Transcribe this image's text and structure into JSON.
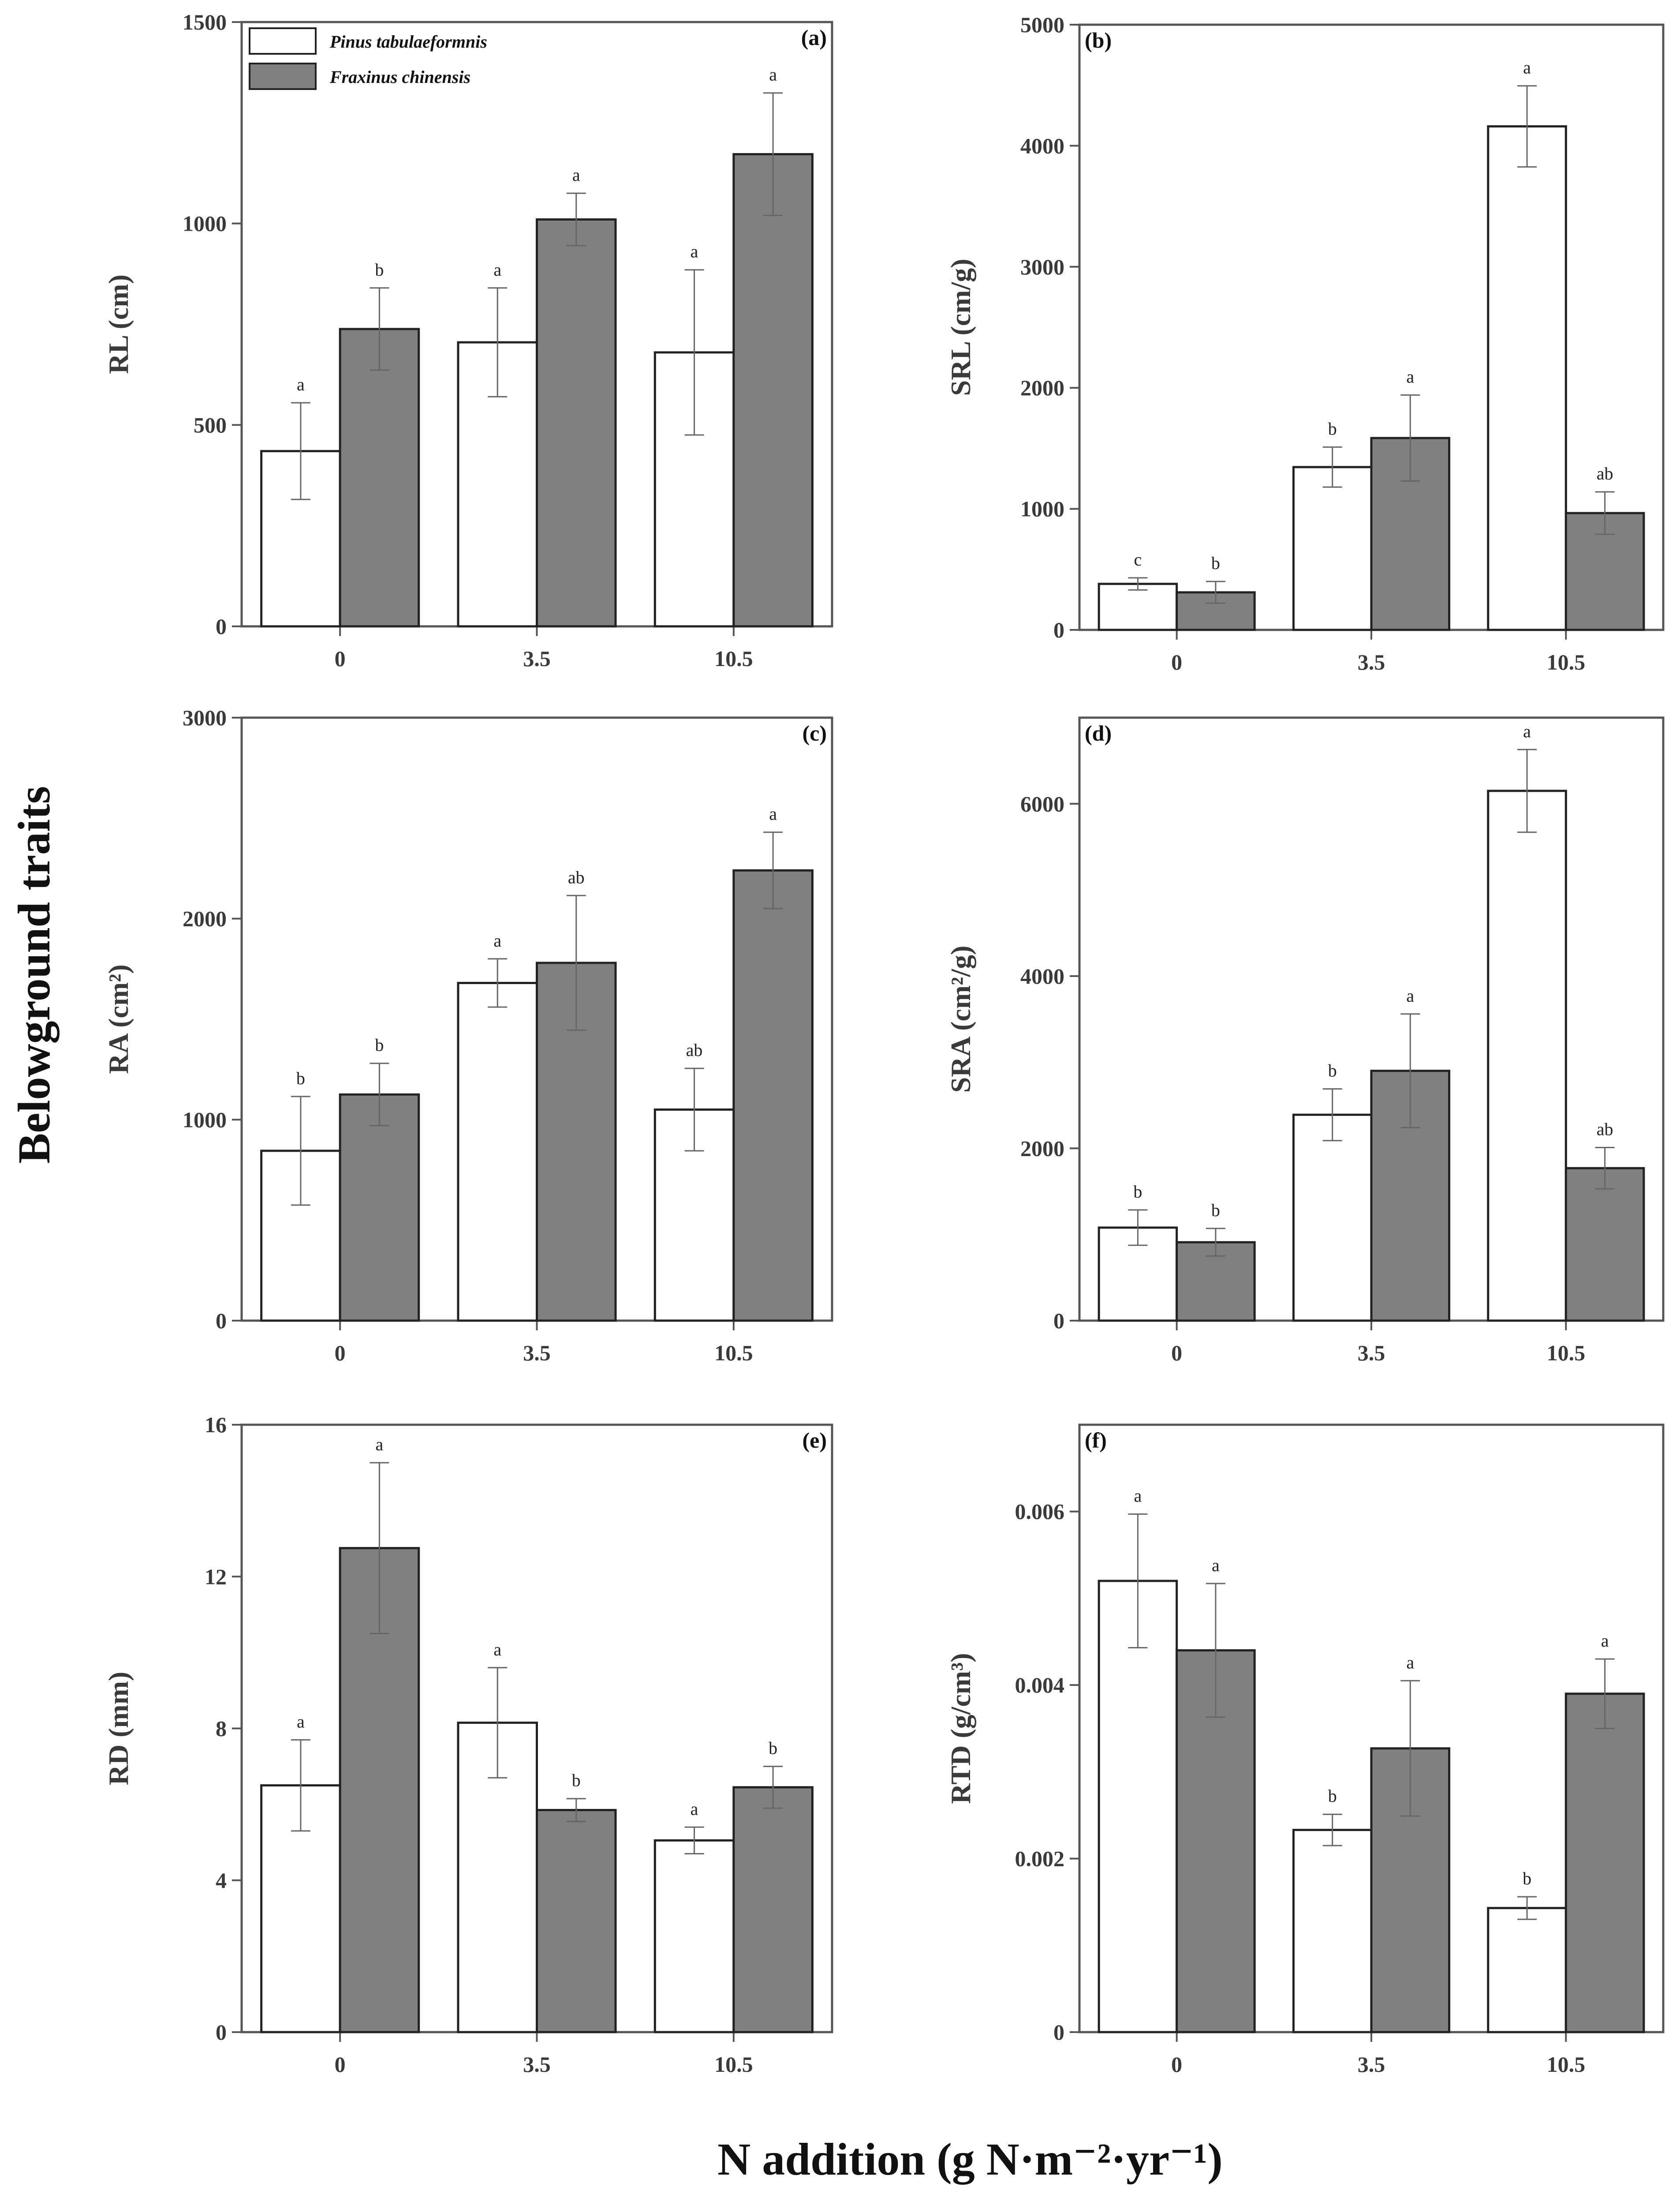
{
  "figure": {
    "ylabel": "Belowground traits",
    "xlabel": "N addition (g N·m⁻²·yr⁻¹)",
    "colors": {
      "pinus": "#ffffff",
      "fraxinus": "#808080",
      "axis": "#555555",
      "error": "#666666"
    },
    "legend": [
      "Pinus tabulaeformnis",
      "Fraxinus chinensis"
    ]
  },
  "chart_data": [
    {
      "type": "bar",
      "panel": "(a)",
      "ylabel": "RL (cm)",
      "categories": [
        "0",
        "3.5",
        "10.5"
      ],
      "ylim": [
        0,
        1500
      ],
      "yticks": [
        0,
        500,
        1000,
        1500
      ],
      "ytick_labels": [
        "0",
        "500",
        "1000",
        "1500"
      ],
      "series": [
        {
          "name": "Pinus tabulaeformnis",
          "values": [
            435,
            705,
            680
          ],
          "errors": [
            120,
            135,
            205
          ],
          "letters": [
            "a",
            "a",
            "a"
          ]
        },
        {
          "name": "Fraxinus chinensis",
          "values": [
            738,
            1010,
            1172
          ],
          "errors": [
            102,
            65,
            152
          ],
          "letters": [
            "b",
            "a",
            "a"
          ]
        }
      ]
    },
    {
      "type": "bar",
      "panel": "(b)",
      "ylabel": "SRL (cm/g)",
      "categories": [
        "0",
        "3.5",
        "10.5"
      ],
      "ylim": [
        0,
        5000
      ],
      "yticks": [
        0,
        1000,
        2000,
        3000,
        4000,
        5000
      ],
      "ytick_labels": [
        "0",
        "1000",
        "2000",
        "3000",
        "4000",
        "5000"
      ],
      "series": [
        {
          "name": "Pinus tabulaeformnis",
          "values": [
            380,
            1345,
            4160
          ],
          "errors": [
            50,
            165,
            335
          ],
          "letters": [
            "c",
            "b",
            "a"
          ]
        },
        {
          "name": "Fraxinus chinensis",
          "values": [
            310,
            1585,
            965
          ],
          "errors": [
            90,
            355,
            175
          ],
          "letters": [
            "b",
            "a",
            "ab"
          ]
        }
      ]
    },
    {
      "type": "bar",
      "panel": "(c)",
      "ylabel": "RA (cm²)",
      "categories": [
        "0",
        "3.5",
        "10.5"
      ],
      "ylim": [
        0,
        3000
      ],
      "yticks": [
        0,
        1000,
        2000,
        3000
      ],
      "ytick_labels": [
        "0",
        "1000",
        "2000",
        "3000"
      ],
      "series": [
        {
          "name": "Pinus tabulaeformnis",
          "values": [
            845,
            1680,
            1050
          ],
          "errors": [
            270,
            120,
            205
          ],
          "letters": [
            "b",
            "a",
            "ab"
          ]
        },
        {
          "name": "Fraxinus chinensis",
          "values": [
            1125,
            1780,
            2240
          ],
          "errors": [
            155,
            335,
            190
          ],
          "letters": [
            "b",
            "ab",
            "a"
          ]
        }
      ]
    },
    {
      "type": "bar",
      "panel": "(d)",
      "ylabel": "SRA (cm²/g)",
      "categories": [
        "0",
        "3.5",
        "10.5"
      ],
      "ylim": [
        0,
        7000
      ],
      "yticks": [
        0,
        2000,
        4000,
        6000
      ],
      "ytick_labels": [
        "0",
        "2000",
        "4000",
        "6000"
      ],
      "series": [
        {
          "name": "Pinus tabulaeformnis",
          "values": [
            1080,
            2390,
            6150
          ],
          "errors": [
            205,
            300,
            480
          ],
          "letters": [
            "b",
            "b",
            "a"
          ]
        },
        {
          "name": "Fraxinus chinensis",
          "values": [
            910,
            2900,
            1770
          ],
          "errors": [
            160,
            660,
            240
          ],
          "letters": [
            "b",
            "a",
            "ab"
          ]
        }
      ]
    },
    {
      "type": "bar",
      "panel": "(e)",
      "ylabel": "RD (mm)",
      "categories": [
        "0",
        "3.5",
        "10.5"
      ],
      "ylim": [
        0,
        16
      ],
      "yticks": [
        0,
        4,
        8,
        12,
        16
      ],
      "ytick_labels": [
        "0",
        "4",
        "8",
        "12",
        "16"
      ],
      "series": [
        {
          "name": "Pinus tabulaeformnis",
          "values": [
            6.5,
            8.15,
            5.05
          ],
          "errors": [
            1.2,
            1.45,
            0.35
          ],
          "letters": [
            "a",
            "a",
            "a"
          ]
        },
        {
          "name": "Fraxinus chinensis",
          "values": [
            12.75,
            5.85,
            6.45
          ],
          "errors": [
            2.25,
            0.3,
            0.55
          ],
          "letters": [
            "a",
            "b",
            "b"
          ]
        }
      ]
    },
    {
      "type": "bar",
      "panel": "(f)",
      "ylabel": "RTD (g/cm³)",
      "categories": [
        "0",
        "3.5",
        "10.5"
      ],
      "ylim": [
        0,
        0.007
      ],
      "yticks": [
        0,
        0.002,
        0.004,
        0.006
      ],
      "ytick_labels": [
        "0",
        "0.002",
        "0.004",
        "0.006"
      ],
      "series": [
        {
          "name": "Pinus tabulaeformnis",
          "values": [
            0.0052,
            0.00233,
            0.00143
          ],
          "errors": [
            0.00077,
            0.00018,
            0.00013
          ],
          "letters": [
            "a",
            "b",
            "b"
          ]
        },
        {
          "name": "Fraxinus chinensis",
          "values": [
            0.0044,
            0.00327,
            0.0039
          ],
          "errors": [
            0.00077,
            0.00078,
            0.0004
          ],
          "letters": [
            "a",
            "a",
            "a"
          ]
        }
      ]
    }
  ]
}
